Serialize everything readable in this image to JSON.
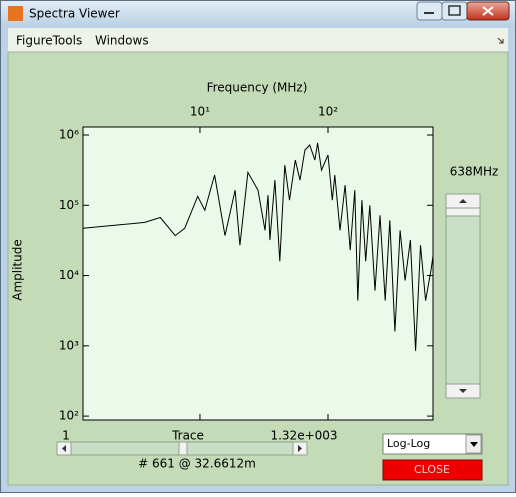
{
  "window": {
    "title": "Spectra Viewer"
  },
  "menu": [
    "FigureTools",
    "Windows"
  ],
  "chart_data": {
    "type": "line",
    "xlabel": "Frequency (MHz)",
    "ylabel": "Amplitude",
    "xscale": "log",
    "yscale": "log",
    "xaxis_position": "top",
    "x": [
      1.22,
      3.7,
      4.9,
      6.4,
      7.6,
      9.6,
      10.9,
      13,
      15.7,
      18.8,
      20.5,
      23.7,
      28.4,
      32.2,
      34,
      35.2,
      38.5,
      42,
      46,
      50,
      55.5,
      60.4,
      66,
      72,
      79,
      83,
      89,
      100,
      108,
      113,
      124,
      136,
      149,
      162,
      171,
      184,
      197,
      212,
      233,
      255,
      280,
      304,
      333,
      366,
      400,
      440,
      483,
      528,
      579,
      637,
      661
    ],
    "series": [
      {
        "color": "#000000",
        "values": [
          47000,
          57000,
          67000,
          37000,
          47000,
          134000,
          85000,
          270000,
          37000,
          164000,
          27000,
          295000,
          164000,
          44000,
          139000,
          32000,
          228000,
          16000,
          372000,
          118000,
          440000,
          228000,
          610000,
          720000,
          440000,
          770000,
          316000,
          520000,
          118000,
          270000,
          44000,
          193000,
          23000,
          164000,
          4400,
          118000,
          16000,
          100000,
          6100,
          72000,
          4400,
          61000,
          1600,
          44000,
          8500,
          32000,
          850,
          27000,
          4400,
          11700,
          19000
        ]
      }
    ],
    "xlim": [
      1.22,
      661
    ],
    "ylim": [
      88,
      1300000
    ],
    "xticks": [
      {
        "value": 10,
        "label": "10¹"
      },
      {
        "value": 100,
        "label": "10²"
      }
    ],
    "yticks": [
      {
        "value": 100,
        "label": "10²"
      },
      {
        "value": 1000,
        "label": "10³"
      },
      {
        "value": 10000,
        "label": "10⁴"
      },
      {
        "value": 100000,
        "label": "10⁵"
      },
      {
        "value": 1000000,
        "label": "10⁶"
      }
    ]
  },
  "side_slider": {
    "label": "638MHz"
  },
  "trace_slider": {
    "min_label": "1",
    "label": "Trace",
    "max_label": "1.32e+003",
    "status": "# 661 @ 32.6612m"
  },
  "scale_menu": {
    "selected": "Log-Log"
  },
  "close_button": {
    "label": "CLOSE"
  }
}
